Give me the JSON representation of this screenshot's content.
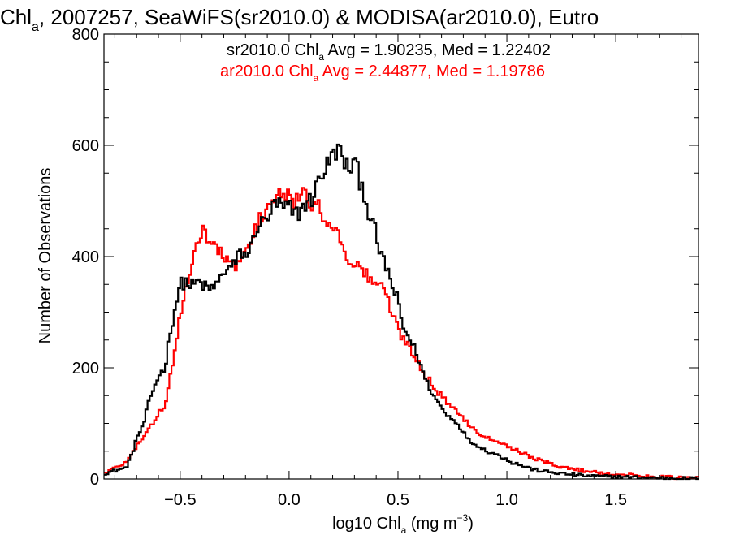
{
  "chart_data": {
    "type": "histogram-step",
    "title": {
      "parts": [
        {
          "text": "Chl",
          "sub": "a"
        },
        {
          "text": ", 2007257, SeaWiFS(sr2010.0) & MODISA(ar2010.0), Eutro"
        }
      ]
    },
    "xlabel": {
      "parts": [
        {
          "text": "log10 Chl",
          "sub": "a"
        },
        {
          "text": " (mg m"
        },
        {
          "text": "",
          "sup": "−3"
        },
        {
          "text": ")"
        }
      ]
    },
    "ylabel": "Number of Observations",
    "xlim": [
      -0.85,
      1.88
    ],
    "ylim": [
      0,
      800
    ],
    "x_ticks": [
      -0.5,
      0.0,
      0.5,
      1.0,
      1.5
    ],
    "x_tick_labels": [
      "−0.5",
      "0.0",
      "0.5",
      "1.0",
      "1.5"
    ],
    "y_ticks": [
      0,
      200,
      400,
      600,
      800
    ],
    "y_tick_labels": [
      "0",
      "200",
      "400",
      "600",
      "800"
    ],
    "colors": {
      "sr": "#000000",
      "ar": "#ff0000",
      "axis": "#000000"
    },
    "series": [
      {
        "name": "sr2010.0",
        "color": "#000000",
        "legend": [
          {
            "text": "sr2010.0 Chl",
            "sub": "a"
          },
          {
            "text": " Avg = 1.90235, Med = 1.22402"
          }
        ],
        "points": [
          [
            -0.85,
            10
          ],
          [
            -0.8,
            15
          ],
          [
            -0.75,
            20
          ],
          [
            -0.72,
            45
          ],
          [
            -0.7,
            75
          ],
          [
            -0.67,
            95
          ],
          [
            -0.65,
            130
          ],
          [
            -0.62,
            165
          ],
          [
            -0.6,
            185
          ],
          [
            -0.57,
            200
          ],
          [
            -0.55,
            255
          ],
          [
            -0.52,
            315
          ],
          [
            -0.5,
            350
          ],
          [
            -0.47,
            355
          ],
          [
            -0.45,
            345
          ],
          [
            -0.42,
            355
          ],
          [
            -0.4,
            350
          ],
          [
            -0.37,
            340
          ],
          [
            -0.35,
            345
          ],
          [
            -0.32,
            355
          ],
          [
            -0.3,
            375
          ],
          [
            -0.27,
            380
          ],
          [
            -0.25,
            385
          ],
          [
            -0.22,
            410
          ],
          [
            -0.2,
            400
          ],
          [
            -0.17,
            420
          ],
          [
            -0.15,
            455
          ],
          [
            -0.12,
            460
          ],
          [
            -0.1,
            470
          ],
          [
            -0.07,
            490
          ],
          [
            -0.05,
            495
          ],
          [
            -0.02,
            485
          ],
          [
            0.0,
            490
          ],
          [
            0.02,
            475
          ],
          [
            0.05,
            480
          ],
          [
            0.07,
            495
          ],
          [
            0.1,
            500
          ],
          [
            0.12,
            520
          ],
          [
            0.15,
            550
          ],
          [
            0.17,
            560
          ],
          [
            0.2,
            580
          ],
          [
            0.22,
            595
          ],
          [
            0.25,
            575
          ],
          [
            0.27,
            555
          ],
          [
            0.3,
            570
          ],
          [
            0.32,
            545
          ],
          [
            0.35,
            510
          ],
          [
            0.37,
            470
          ],
          [
            0.4,
            440
          ],
          [
            0.42,
            400
          ],
          [
            0.45,
            380
          ],
          [
            0.47,
            350
          ],
          [
            0.5,
            320
          ],
          [
            0.52,
            275
          ],
          [
            0.55,
            255
          ],
          [
            0.57,
            240
          ],
          [
            0.6,
            210
          ],
          [
            0.62,
            185
          ],
          [
            0.65,
            160
          ],
          [
            0.67,
            145
          ],
          [
            0.7,
            130
          ],
          [
            0.72,
            115
          ],
          [
            0.75,
            110
          ],
          [
            0.77,
            100
          ],
          [
            0.8,
            85
          ],
          [
            0.82,
            72
          ],
          [
            0.85,
            62
          ],
          [
            0.87,
            60
          ],
          [
            0.9,
            52
          ],
          [
            0.92,
            48
          ],
          [
            0.95,
            45
          ],
          [
            0.97,
            40
          ],
          [
            1.0,
            36
          ],
          [
            1.02,
            30
          ],
          [
            1.05,
            27
          ],
          [
            1.07,
            24
          ],
          [
            1.1,
            20
          ],
          [
            1.12,
            17
          ],
          [
            1.15,
            15
          ],
          [
            1.2,
            12
          ],
          [
            1.25,
            10
          ],
          [
            1.3,
            8
          ],
          [
            1.35,
            6
          ],
          [
            1.4,
            5
          ],
          [
            1.5,
            4
          ],
          [
            1.6,
            3
          ],
          [
            1.7,
            2
          ],
          [
            1.8,
            1
          ]
        ]
      },
      {
        "name": "ar2010.0",
        "color": "#ff0000",
        "legend": [
          {
            "text": "ar2010.0 Chl",
            "sub": "a"
          },
          {
            "text": " Avg = 2.44877, Med = 1.19786"
          }
        ],
        "points": [
          [
            -0.85,
            10
          ],
          [
            -0.8,
            20
          ],
          [
            -0.75,
            30
          ],
          [
            -0.72,
            45
          ],
          [
            -0.7,
            60
          ],
          [
            -0.67,
            75
          ],
          [
            -0.65,
            90
          ],
          [
            -0.62,
            100
          ],
          [
            -0.6,
            120
          ],
          [
            -0.57,
            130
          ],
          [
            -0.55,
            175
          ],
          [
            -0.52,
            240
          ],
          [
            -0.5,
            300
          ],
          [
            -0.47,
            345
          ],
          [
            -0.45,
            370
          ],
          [
            -0.42,
            425
          ],
          [
            -0.4,
            455
          ],
          [
            -0.37,
            430
          ],
          [
            -0.35,
            420
          ],
          [
            -0.32,
            410
          ],
          [
            -0.3,
            400
          ],
          [
            -0.27,
            380
          ],
          [
            -0.25,
            385
          ],
          [
            -0.22,
            395
          ],
          [
            -0.2,
            405
          ],
          [
            -0.17,
            425
          ],
          [
            -0.15,
            455
          ],
          [
            -0.12,
            475
          ],
          [
            -0.1,
            495
          ],
          [
            -0.07,
            500
          ],
          [
            -0.05,
            505
          ],
          [
            -0.02,
            510
          ],
          [
            0.0,
            505
          ],
          [
            0.02,
            500
          ],
          [
            0.05,
            510
          ],
          [
            0.07,
            505
          ],
          [
            0.1,
            500
          ],
          [
            0.12,
            490
          ],
          [
            0.15,
            480
          ],
          [
            0.17,
            470
          ],
          [
            0.2,
            460
          ],
          [
            0.22,
            440
          ],
          [
            0.25,
            420
          ],
          [
            0.27,
            400
          ],
          [
            0.3,
            385
          ],
          [
            0.32,
            380
          ],
          [
            0.35,
            370
          ],
          [
            0.37,
            360
          ],
          [
            0.4,
            355
          ],
          [
            0.42,
            345
          ],
          [
            0.45,
            330
          ],
          [
            0.47,
            300
          ],
          [
            0.5,
            270
          ],
          [
            0.52,
            255
          ],
          [
            0.55,
            240
          ],
          [
            0.57,
            225
          ],
          [
            0.6,
            205
          ],
          [
            0.62,
            190
          ],
          [
            0.65,
            175
          ],
          [
            0.67,
            160
          ],
          [
            0.7,
            150
          ],
          [
            0.72,
            140
          ],
          [
            0.75,
            130
          ],
          [
            0.77,
            122
          ],
          [
            0.8,
            110
          ],
          [
            0.82,
            100
          ],
          [
            0.85,
            90
          ],
          [
            0.87,
            82
          ],
          [
            0.9,
            78
          ],
          [
            0.92,
            72
          ],
          [
            0.95,
            70
          ],
          [
            0.97,
            66
          ],
          [
            1.0,
            60
          ],
          [
            1.02,
            55
          ],
          [
            1.05,
            52
          ],
          [
            1.07,
            47
          ],
          [
            1.1,
            42
          ],
          [
            1.12,
            38
          ],
          [
            1.15,
            34
          ],
          [
            1.17,
            31
          ],
          [
            1.2,
            28
          ],
          [
            1.25,
            22
          ],
          [
            1.3,
            18
          ],
          [
            1.35,
            15
          ],
          [
            1.4,
            13
          ],
          [
            1.45,
            10
          ],
          [
            1.5,
            9
          ],
          [
            1.55,
            7
          ],
          [
            1.6,
            6
          ],
          [
            1.65,
            5
          ],
          [
            1.7,
            4
          ],
          [
            1.75,
            3
          ],
          [
            1.8,
            2
          ],
          [
            1.85,
            2
          ]
        ]
      }
    ]
  }
}
